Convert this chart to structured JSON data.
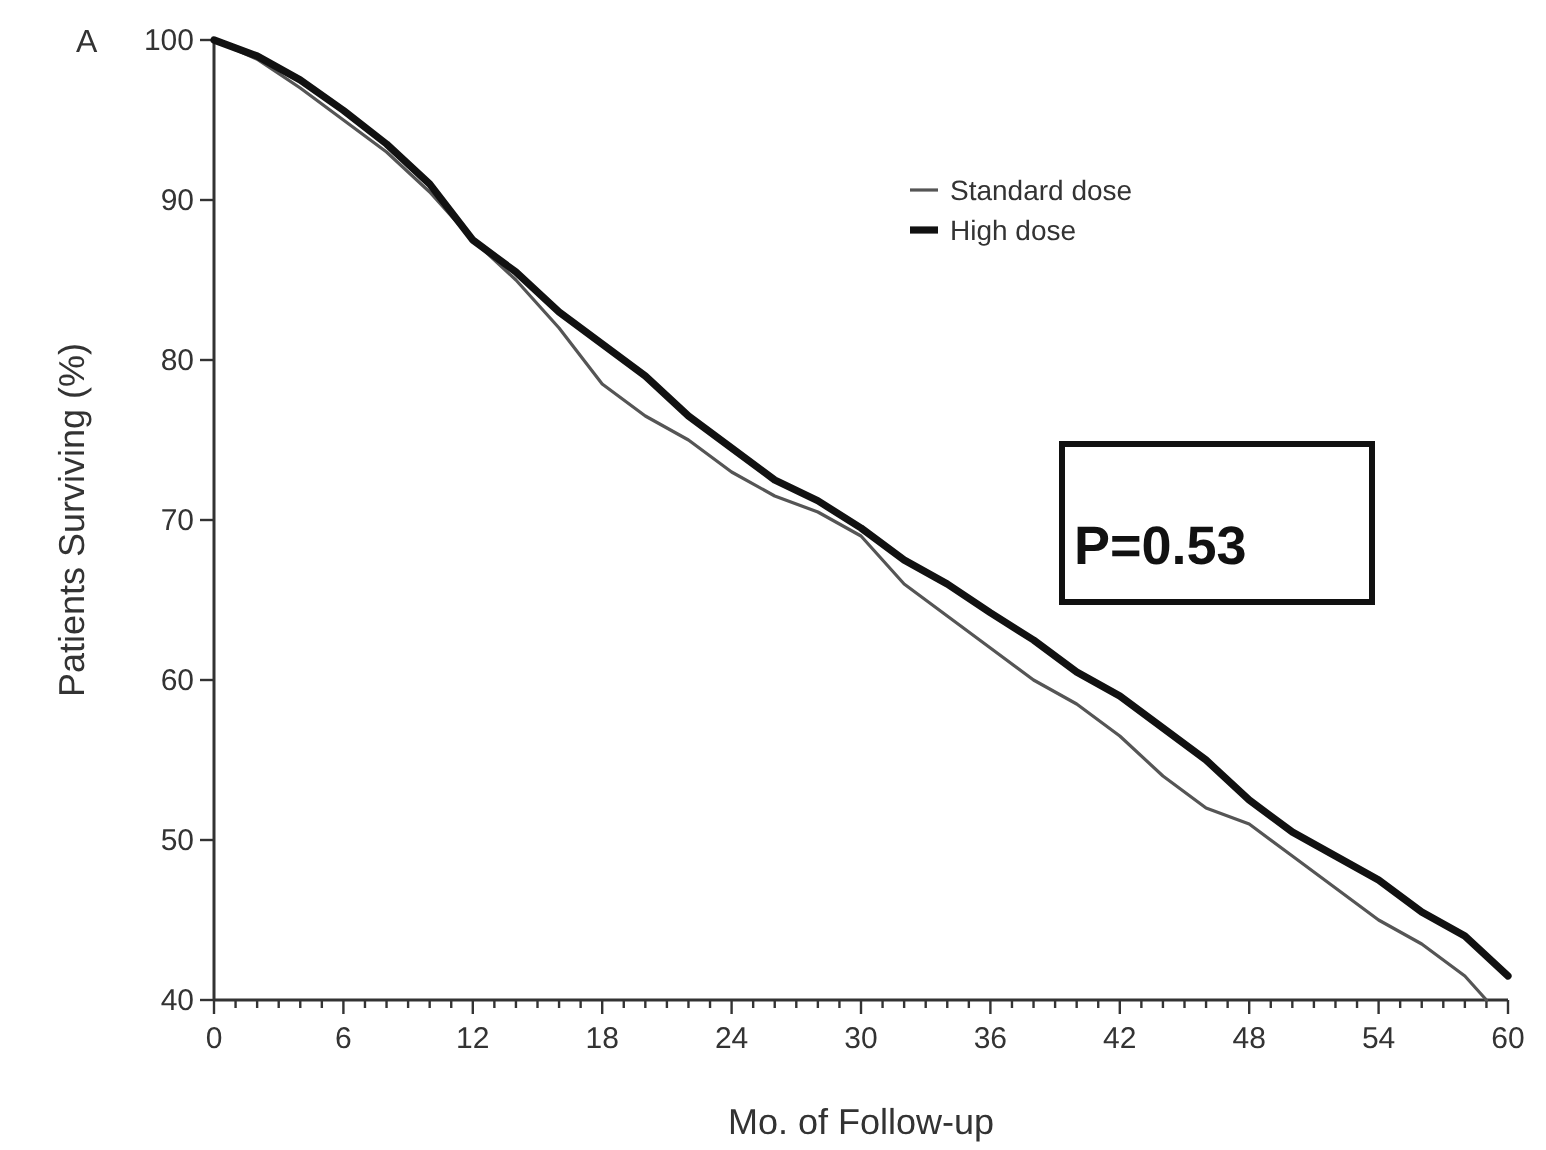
{
  "chart_data": {
    "type": "line",
    "xlabel": "Mo. of Follow-up",
    "ylabel": "Patients Surviving (%)",
    "annotations": [
      "A",
      "P=0.53"
    ],
    "xlim": [
      0,
      60
    ],
    "ylim": [
      40,
      100
    ],
    "xticks": [
      0,
      {
        "value": 1,
        "label": null
      },
      {
        "value": 2,
        "label": null
      },
      {
        "value": 3,
        "label": null
      },
      {
        "value": 4,
        "label": null
      },
      {
        "value": 5,
        "label": null
      },
      6,
      {
        "value": 7,
        "label": null
      },
      {
        "value": 8,
        "label": null
      },
      {
        "value": 9,
        "label": null
      },
      {
        "value": 10,
        "label": null
      },
      {
        "value": 11,
        "label": null
      },
      12,
      {
        "value": 13,
        "label": null
      },
      {
        "value": 14,
        "label": null
      },
      {
        "value": 15,
        "label": null
      },
      {
        "value": 16,
        "label": null
      },
      {
        "value": 17,
        "label": null
      },
      18,
      {
        "value": 19,
        "label": null
      },
      {
        "value": 20,
        "label": null
      },
      {
        "value": 21,
        "label": null
      },
      {
        "value": 22,
        "label": null
      },
      {
        "value": 23,
        "label": null
      },
      24,
      {
        "value": 25,
        "label": null
      },
      {
        "value": 26,
        "label": null
      },
      {
        "value": 27,
        "label": null
      },
      {
        "value": 28,
        "label": null
      },
      {
        "value": 29,
        "label": null
      },
      30,
      {
        "value": 31,
        "label": null
      },
      {
        "value": 32,
        "label": null
      },
      {
        "value": 33,
        "label": null
      },
      {
        "value": 34,
        "label": null
      },
      {
        "value": 35,
        "label": null
      },
      36,
      {
        "value": 37,
        "label": null
      },
      {
        "value": 38,
        "label": null
      },
      {
        "value": 39,
        "label": null
      },
      {
        "value": 40,
        "label": null
      },
      {
        "value": 41,
        "label": null
      },
      42,
      {
        "value": 43,
        "label": null
      },
      {
        "value": 44,
        "label": null
      },
      {
        "value": 45,
        "label": null
      },
      {
        "value": 46,
        "label": null
      },
      {
        "value": 47,
        "label": null
      },
      48,
      {
        "value": 49,
        "label": null
      },
      {
        "value": 50,
        "label": null
      },
      {
        "value": 51,
        "label": null
      },
      {
        "value": 52,
        "label": null
      },
      {
        "value": 53,
        "label": null
      },
      54,
      {
        "value": 55,
        "label": null
      },
      {
        "value": 56,
        "label": null
      },
      {
        "value": 57,
        "label": null
      },
      {
        "value": 58,
        "label": null
      },
      {
        "value": 59,
        "label": null
      },
      60
    ],
    "yticks": [
      40,
      50,
      60,
      70,
      80,
      90,
      100
    ],
    "grid": false,
    "legend": "top right",
    "marker": "none",
    "line_style": "solid",
    "series": [
      {
        "name": "Standard dose",
        "color": "#555555",
        "x": [
          0,
          2,
          4,
          6,
          8,
          10,
          12,
          14,
          16,
          18,
          20,
          22,
          24,
          26,
          28,
          30,
          32,
          34,
          36,
          38,
          40,
          42,
          44,
          46,
          48,
          50,
          52,
          54,
          56,
          58,
          59
        ],
        "values": [
          100,
          98.8,
          97,
          95,
          93,
          90.5,
          87.5,
          85,
          82,
          78.5,
          76.5,
          75,
          73,
          71.5,
          70.5,
          69,
          66,
          64,
          62,
          60,
          58.5,
          56.5,
          54,
          52,
          51,
          49,
          47,
          45,
          43.5,
          41.5,
          40
        ]
      },
      {
        "name": "High dose",
        "color": "#111111",
        "x": [
          0,
          2,
          4,
          6,
          8,
          10,
          12,
          14,
          16,
          18,
          20,
          22,
          24,
          26,
          28,
          30,
          32,
          34,
          36,
          38,
          40,
          42,
          44,
          46,
          48,
          50,
          52,
          54,
          56,
          58,
          60
        ],
        "values": [
          100,
          99,
          97.5,
          95.6,
          93.5,
          91,
          87.5,
          85.5,
          83,
          81,
          79,
          76.5,
          74.5,
          72.5,
          71.2,
          69.5,
          67.5,
          66,
          64.2,
          62.5,
          60.5,
          59,
          57,
          55,
          52.5,
          50.5,
          49,
          47.5,
          45.5,
          44,
          41.5
        ]
      }
    ]
  }
}
